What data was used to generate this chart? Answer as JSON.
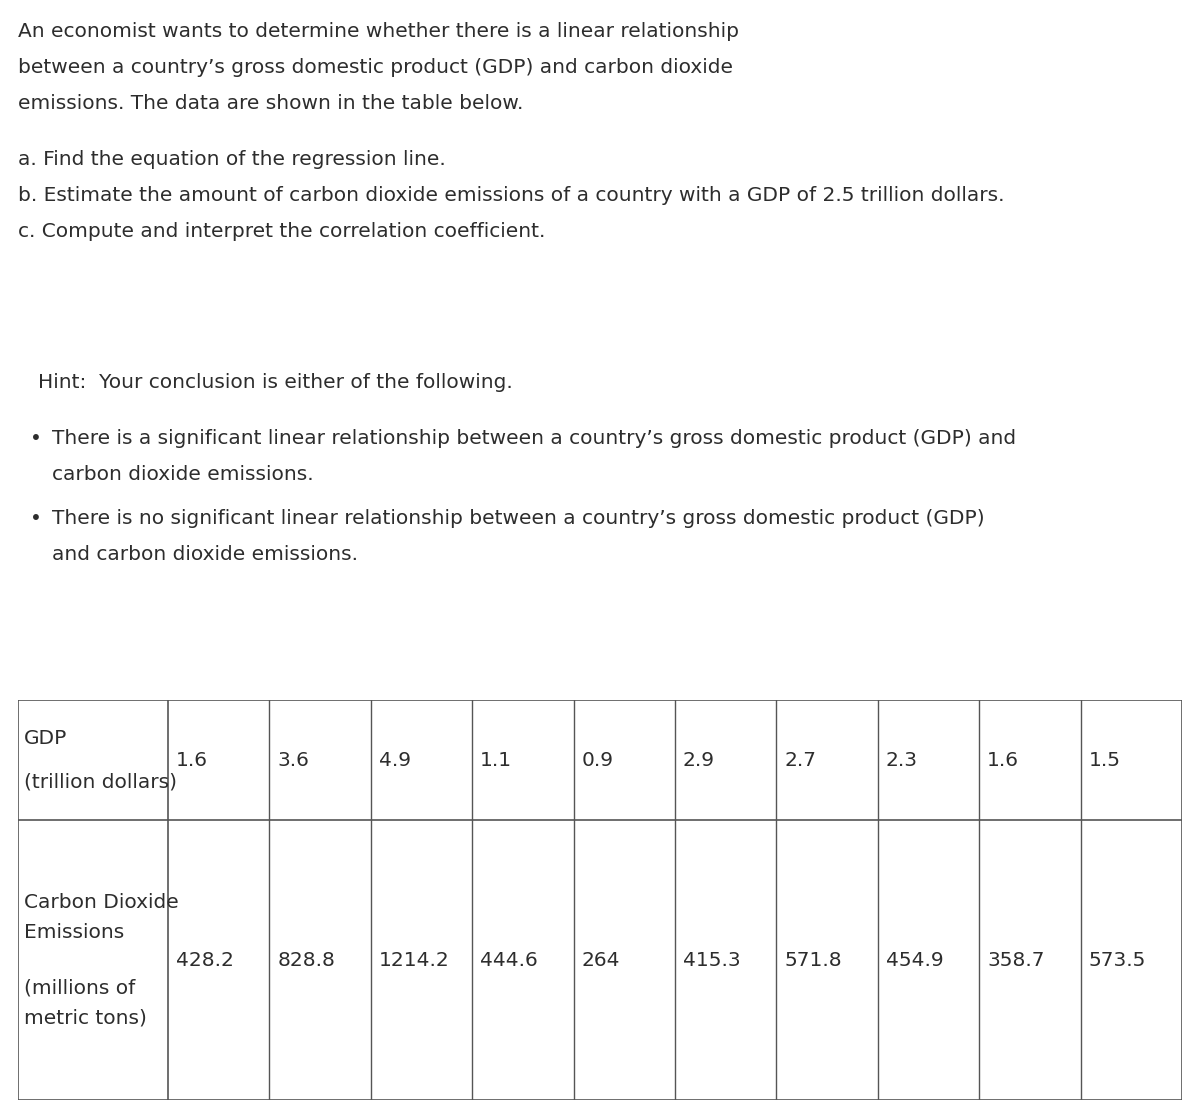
{
  "background_color": "#ffffff",
  "text_color": "#2d2d2d",
  "intro_lines": [
    "An economist wants to determine whether there is a linear relationship",
    "between a country’s gross domestic product (GDP) and carbon dioxide",
    "emissions. The data are shown in the table below."
  ],
  "questions": [
    "a. Find the equation of the regression line.",
    "b. Estimate the amount of carbon dioxide emissions of a country with a GDP of 2.5 trillion dollars.",
    "c. Compute and interpret the correlation coefficient."
  ],
  "hint_line": "Hint:  Your conclusion is either of the following.",
  "bullet1_line1": "There is a significant linear relationship between a country’s gross domestic product (GDP) and",
  "bullet1_line2": "carbon dioxide emissions.",
  "bullet2_line1": "There is no significant linear relationship between a country’s gross domestic product (GDP)",
  "bullet2_line2": "and carbon dioxide emissions.",
  "gdp_label_line1": "GDP",
  "gdp_label_line2": "(trillion dollars)",
  "co2_label_line1": "Carbon Dioxide",
  "co2_label_line2": "Emissions",
  "co2_label_line3": "(millions of",
  "co2_label_line4": "metric tons)",
  "gdp_values": [
    "1.6",
    "3.6",
    "4.9",
    "1.1",
    "0.9",
    "2.9",
    "2.7",
    "2.3",
    "1.6",
    "1.5"
  ],
  "co2_values": [
    "428.2",
    "828.8",
    "1214.2",
    "444.6",
    "264",
    "415.3",
    "571.8",
    "454.9",
    "358.7",
    "573.5"
  ],
  "font_size": 14.5,
  "font_family": "DejaVu Sans"
}
